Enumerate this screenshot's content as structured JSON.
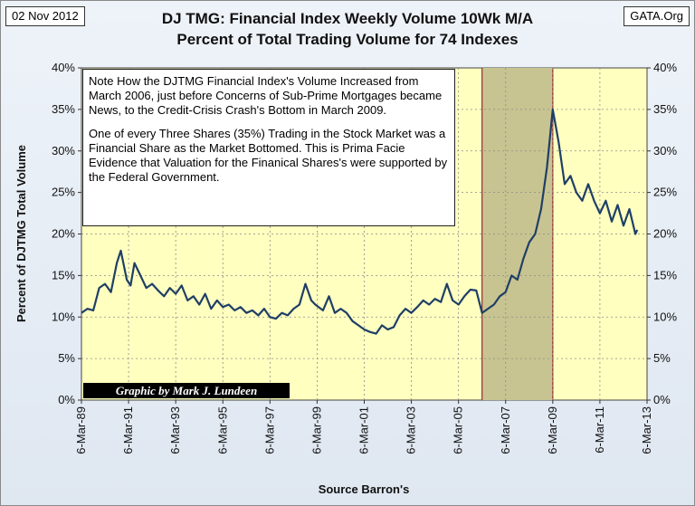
{
  "header": {
    "date": "02 Nov 2012",
    "source_badge": "GATA.Org",
    "title_line1": "DJ TMG: Financial Index Weekly Volume 10Wk M/A",
    "title_line2": "Percent of Total Trading Volume for 74 Indexes"
  },
  "note": {
    "paragraph1": "Note How the DJTMG Financial Index's Volume Increased from March 2006, just before Concerns of Sub-Prime Mortgages became News, to the Credit-Crisis Crash's Bottom in March 2009.",
    "paragraph2": "One of every Three Shares (35%) Trading in the Stock Market was a Financial Share as the Market Bottomed. This is Prima Facie Evidence that Valuation for the Finanical Shares's were supported by the Federal Government."
  },
  "credit": "Graphic by Mark J. Lundeen",
  "colors": {
    "plot_background": "#ffffc0",
    "shaded_period": "#c8c491",
    "series_line": "#1f3f66",
    "shade_border": "#9a2a2a"
  },
  "chart_data": {
    "type": "line",
    "title": "DJ TMG: Financial Index Weekly Volume 10Wk M/A Percent of Total Trading Volume for 74 Indexes",
    "xlabel": "Source Barron's",
    "ylabel": "Percent of DJTMG Total Volume",
    "ylim": [
      0,
      40
    ],
    "y_ticks": [
      "0%",
      "5%",
      "10%",
      "15%",
      "20%",
      "25%",
      "30%",
      "35%",
      "40%"
    ],
    "right_y_ticks": [
      "0%",
      "5%",
      "10%",
      "15%",
      "20%",
      "25%",
      "30%",
      "35%",
      "40%"
    ],
    "x_ticks": [
      "6-Mar-89",
      "6-Mar-91",
      "6-Mar-93",
      "6-Mar-95",
      "6-Mar-97",
      "6-Mar-99",
      "6-Mar-01",
      "6-Mar-03",
      "6-Mar-05",
      "6-Mar-07",
      "6-Mar-09",
      "6-Mar-11",
      "6-Mar-13"
    ],
    "xlim": [
      "1989-03-06",
      "2013-03-06"
    ],
    "grid": true,
    "shaded_region": [
      "2006-03-06",
      "2009-03-06"
    ],
    "series": [
      {
        "x": [
          "1989-03",
          "1989-06",
          "1989-09",
          "1989-12",
          "1990-03",
          "1990-06",
          "1990-09",
          "1990-11",
          "1991-02",
          "1991-04",
          "1991-06",
          "1991-09",
          "1991-12",
          "1992-03",
          "1992-06",
          "1992-09",
          "1992-12",
          "1993-03",
          "1993-06",
          "1993-09",
          "1993-12",
          "1994-03",
          "1994-06",
          "1994-09",
          "1994-12",
          "1995-03",
          "1995-06",
          "1995-09",
          "1995-12",
          "1996-03",
          "1996-06",
          "1996-09",
          "1996-12",
          "1997-03",
          "1997-06",
          "1997-09",
          "1997-12",
          "1998-03",
          "1998-06",
          "1998-09",
          "1998-12",
          "1999-02",
          "1999-06",
          "1999-09",
          "1999-12",
          "2000-03",
          "2000-06",
          "2000-09",
          "2000-12",
          "2001-03",
          "2001-06",
          "2001-09",
          "2001-12",
          "2002-03",
          "2002-06",
          "2002-09",
          "2002-12",
          "2003-03",
          "2003-06",
          "2003-09",
          "2003-12",
          "2004-03",
          "2004-06",
          "2004-09",
          "2004-12",
          "2005-03",
          "2005-06",
          "2005-09",
          "2005-12",
          "2006-03",
          "2006-06",
          "2006-09",
          "2006-12",
          "2007-03",
          "2007-06",
          "2007-09",
          "2007-12",
          "2008-03",
          "2008-06",
          "2008-09",
          "2008-12",
          "2009-03",
          "2009-06",
          "2009-09",
          "2009-12",
          "2010-03",
          "2010-06",
          "2010-09",
          "2010-12",
          "2011-03",
          "2011-06",
          "2011-09",
          "2011-12",
          "2012-03",
          "2012-06",
          "2012-09",
          "2012-10"
        ],
        "values": [
          10.5,
          11,
          10.8,
          13.5,
          14,
          13,
          16.5,
          18,
          14.5,
          13.8,
          16.5,
          15,
          13.5,
          14,
          13.2,
          12.5,
          13.5,
          12.8,
          13.8,
          12,
          12.5,
          11.5,
          12.8,
          11,
          12,
          11.2,
          11.5,
          10.8,
          11.2,
          10.5,
          10.8,
          10.2,
          11,
          10,
          9.8,
          10.5,
          10.2,
          11,
          11.5,
          14,
          12,
          11.5,
          10.8,
          12.5,
          10.5,
          11,
          10.5,
          9.5,
          9,
          8.5,
          8.2,
          8,
          9,
          8.5,
          8.8,
          10.2,
          11,
          10.5,
          11.2,
          12,
          11.5,
          12.2,
          11.8,
          14,
          12,
          11.5,
          12.5,
          13.3,
          13.2,
          10.5,
          11,
          11.5,
          12.5,
          13,
          15,
          14.5,
          17,
          19,
          20,
          23,
          28,
          35,
          31,
          26,
          27,
          25,
          24,
          26,
          24,
          22.5,
          24,
          21.5,
          23.5,
          21,
          23,
          20,
          20.5
        ]
      }
    ]
  }
}
